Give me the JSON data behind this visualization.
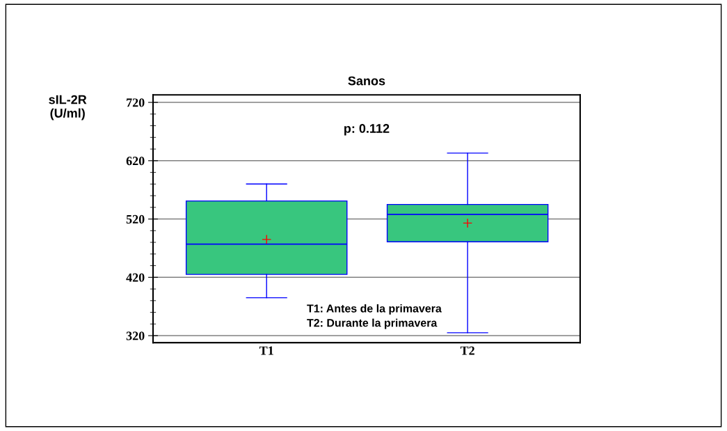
{
  "chart_data": {
    "type": "box",
    "title": "Sanos",
    "ylabel": "sIL-2R\n(U/ml)",
    "categories": [
      "T1",
      "T2"
    ],
    "boxes": [
      {
        "low": 385,
        "q1": 425,
        "median": 477,
        "q3": 551,
        "high": 580,
        "mean": 485
      },
      {
        "low": 325,
        "q1": 481,
        "median": 528,
        "q3": 545,
        "high": 633,
        "mean": 513
      }
    ],
    "color": "#38c67e",
    "ylim": [
      308,
      733
    ],
    "yticks": [
      320,
      420,
      520,
      620,
      720
    ],
    "grid": "y",
    "annotations": [
      "p: 0.112",
      "T1: Antes de la primavera",
      "T2: Durante la primavera"
    ]
  }
}
